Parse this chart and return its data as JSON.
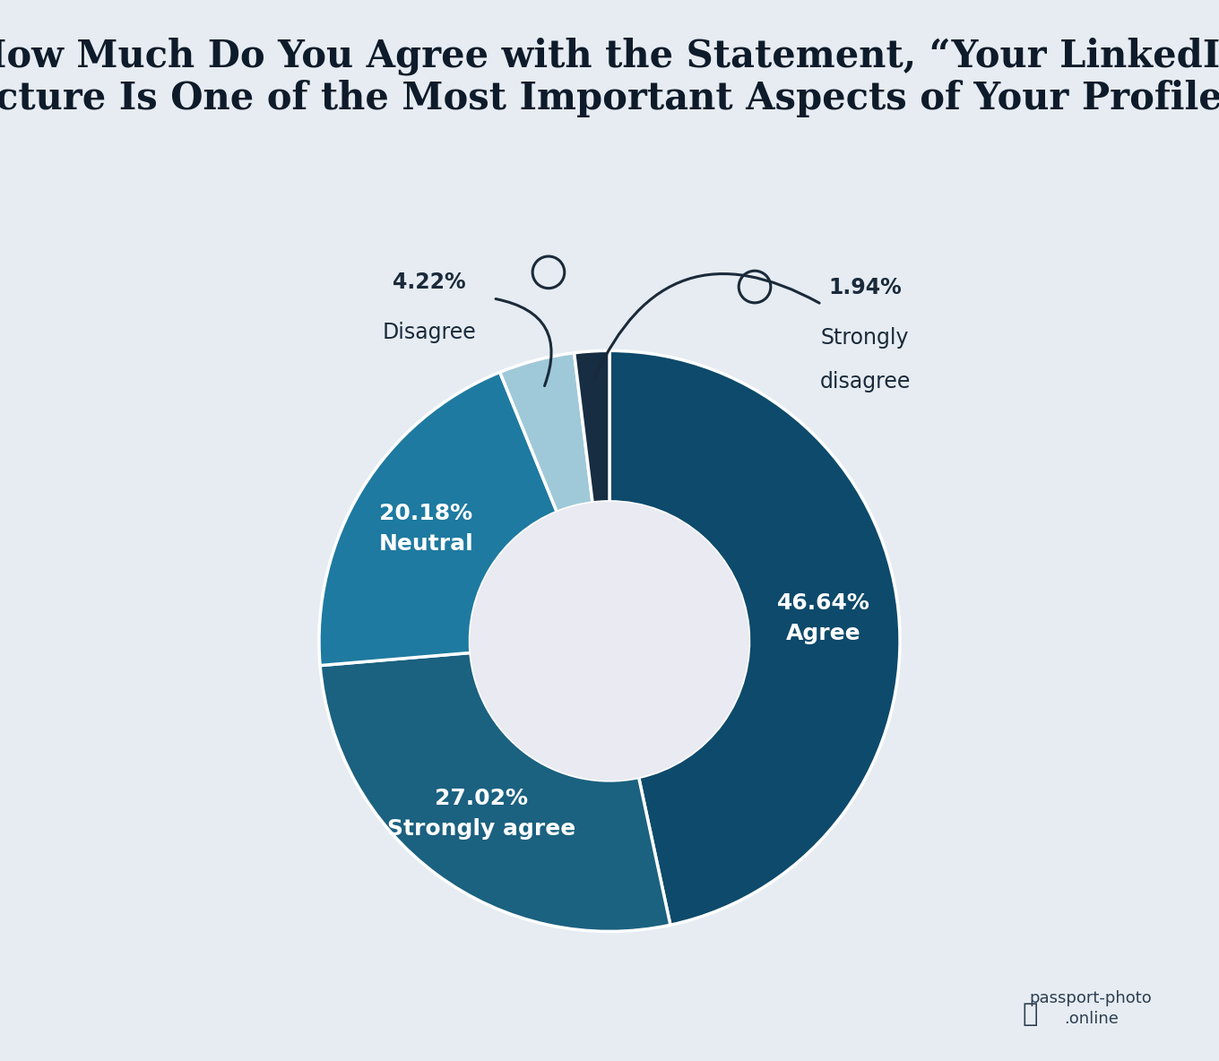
{
  "title_line1": "How Much Do You Agree with the Statement, “Your LinkedIn",
  "title_line2": "Picture Is One of the Most Important Aspects of Your Profile”?",
  "slices": [
    {
      "label": "Agree",
      "pct": 46.64,
      "color": "#0d4a6b",
      "text_color": "white"
    },
    {
      "label": "Strongly agree",
      "pct": 27.02,
      "color": "#1b6180",
      "text_color": "white"
    },
    {
      "label": "Neutral",
      "pct": 20.18,
      "color": "#1e7aa0",
      "text_color": "white"
    },
    {
      "label": "Disagree",
      "pct": 4.22,
      "color": "#9fc9d8",
      "text_color": "white"
    },
    {
      "label": "Strongly\ndisagree",
      "pct": 1.94,
      "color": "#162d42",
      "text_color": "white"
    }
  ],
  "background_color": "#e6ecf2",
  "donut_center_color": "#eaeaf2",
  "title_fontsize": 30,
  "title_color": "#0d1b2a",
  "label_fontsize": 18,
  "annotation_fontsize": 17,
  "annotation_color": "#1a2a3a",
  "arrow_color": "#1a2a3a",
  "watermark_color": "#2d3e50",
  "watermark_fontsize": 13
}
